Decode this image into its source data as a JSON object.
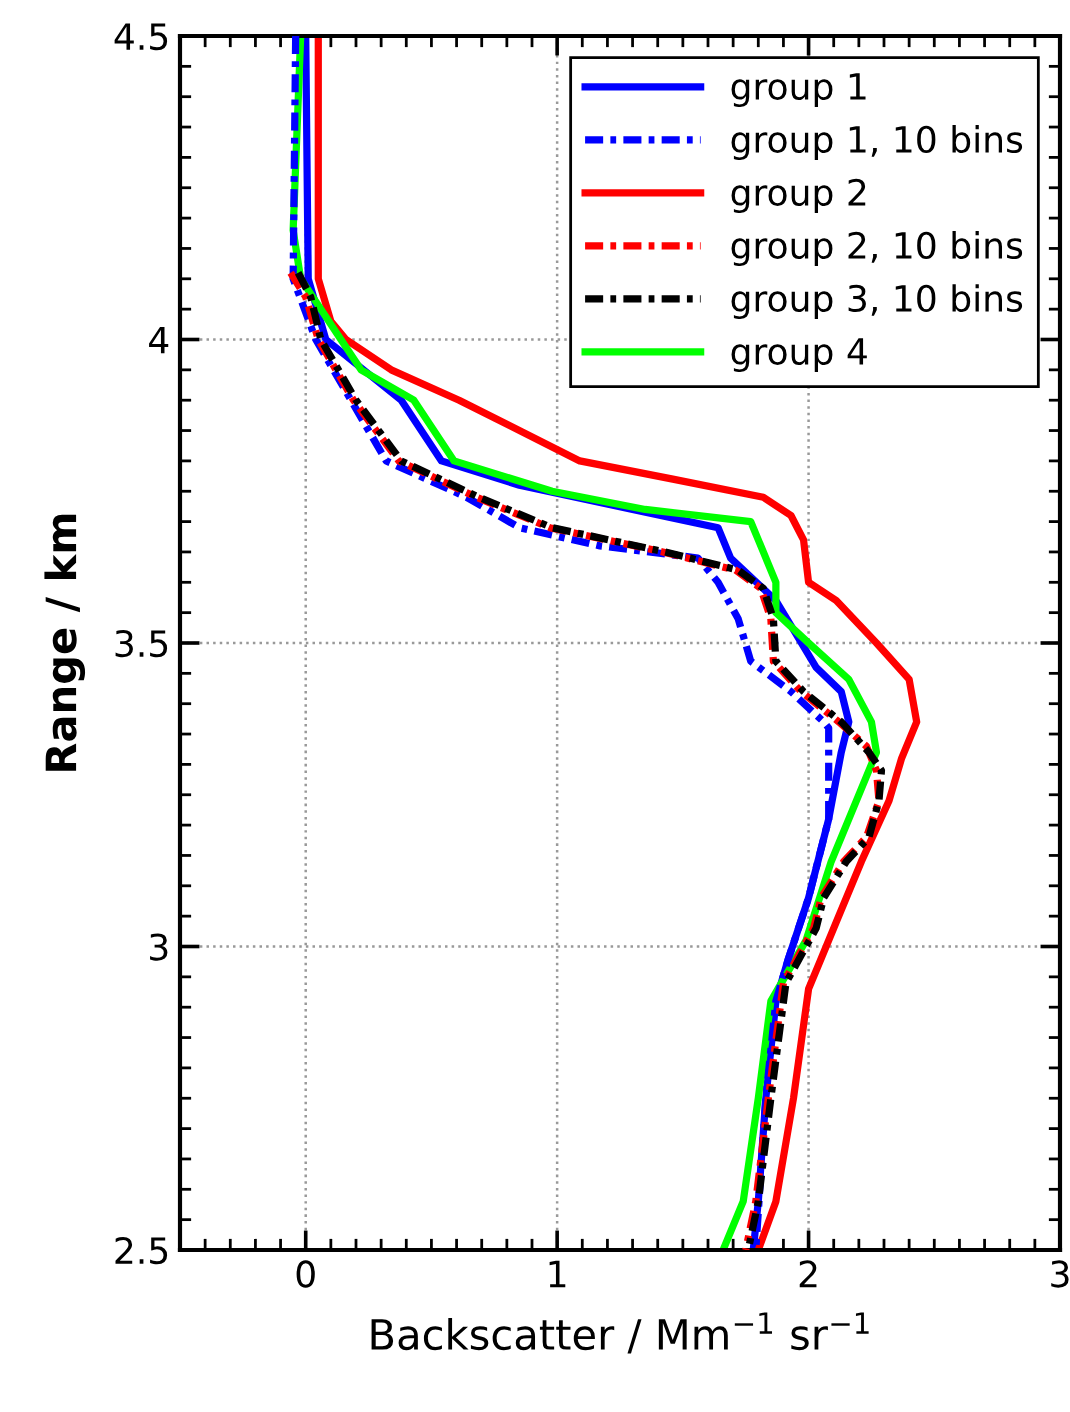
{
  "chart_data": {
    "type": "line",
    "xlabel": "Backscatter / Mm$^{−1}$ sr$^{−1}$",
    "ylabel": "Range / km",
    "xlim": [
      -0.5,
      3
    ],
    "ylim": [
      2.5,
      4.5
    ],
    "xticks": [
      0,
      1,
      2,
      3
    ],
    "yticks": [
      2.5,
      3,
      3.5,
      4,
      4.5
    ],
    "grid": true,
    "legend": "top right",
    "marker": "none",
    "series": [
      {
        "name": "group 1",
        "color": "#0000ff",
        "line_style": "solid",
        "x": [
          0.0,
          0.01,
          0.08,
          0.38,
          0.54,
          0.85,
          1.3,
          1.64,
          1.69,
          1.87,
          2.03,
          2.13,
          2.16,
          2.13,
          2.08,
          2.0,
          1.92,
          1.87,
          1.83,
          1.8,
          1.78
        ],
        "values": [
          4.5,
          4.1,
          4.0,
          3.9,
          3.8,
          3.76,
          3.72,
          3.69,
          3.64,
          3.57,
          3.46,
          3.42,
          3.37,
          3.32,
          3.21,
          3.08,
          2.98,
          2.91,
          2.75,
          2.58,
          2.5
        ]
      },
      {
        "name": "group 1, 10 bins",
        "color": "#0000ff",
        "line_style": "dashdot",
        "x": [
          -0.04,
          -0.05,
          0.04,
          0.18,
          0.32,
          0.64,
          0.85,
          1.17,
          1.56,
          1.64,
          1.72,
          1.77,
          1.93,
          2.06,
          2.08,
          2.08,
          2.0,
          1.92,
          1.87,
          1.83,
          1.79
        ],
        "values": [
          4.5,
          4.1,
          4.0,
          3.9,
          3.8,
          3.74,
          3.69,
          3.66,
          3.64,
          3.6,
          3.54,
          3.47,
          3.42,
          3.37,
          3.36,
          3.21,
          3.08,
          2.98,
          2.91,
          2.75,
          2.5
        ]
      },
      {
        "name": "group 2",
        "color": "#ff0000",
        "line_style": "solid",
        "x": [
          0.05,
          0.05,
          0.1,
          0.16,
          0.34,
          0.61,
          1.09,
          1.46,
          1.82,
          1.93,
          1.98,
          2.0,
          2.11,
          2.27,
          2.4,
          2.43,
          2.37,
          2.32,
          2.21,
          2.11,
          2.05,
          2.0,
          1.94,
          1.87,
          1.8
        ],
        "values": [
          4.5,
          4.1,
          4.03,
          4.0,
          3.95,
          3.9,
          3.8,
          3.77,
          3.74,
          3.71,
          3.67,
          3.6,
          3.57,
          3.5,
          3.44,
          3.37,
          3.31,
          3.24,
          3.14,
          3.04,
          2.98,
          2.93,
          2.75,
          2.58,
          2.5
        ]
      },
      {
        "name": "group 2, 10 bins",
        "color": "#ff0000",
        "line_style": "dashdot",
        "x": [
          -0.06,
          0.0,
          0.05,
          0.19,
          0.37,
          0.68,
          0.97,
          1.42,
          1.71,
          1.81,
          1.85,
          1.86,
          1.97,
          2.12,
          2.23,
          2.27,
          2.28,
          2.23,
          2.14,
          2.05,
          2.02,
          1.9,
          1.84,
          1.79,
          1.75
        ],
        "values": [
          4.11,
          4.07,
          4.0,
          3.9,
          3.8,
          3.74,
          3.69,
          3.65,
          3.62,
          3.59,
          3.54,
          3.47,
          3.42,
          3.37,
          3.33,
          3.29,
          3.24,
          3.18,
          3.14,
          3.08,
          3.03,
          2.94,
          2.75,
          2.58,
          2.5
        ]
      },
      {
        "name": "group 3, 10 bins",
        "color": "#000000",
        "line_style": "dashdot",
        "x": [
          -0.03,
          0.02,
          0.06,
          0.2,
          0.38,
          0.69,
          0.98,
          1.43,
          1.72,
          1.82,
          1.86,
          1.87,
          1.98,
          2.13,
          2.24,
          2.29,
          2.28,
          2.24,
          2.15,
          2.06,
          2.03,
          1.91,
          1.85,
          1.8,
          1.76
        ],
        "values": [
          4.11,
          4.07,
          4.0,
          3.9,
          3.8,
          3.74,
          3.69,
          3.65,
          3.62,
          3.59,
          3.54,
          3.47,
          3.42,
          3.37,
          3.32,
          3.29,
          3.24,
          3.18,
          3.14,
          3.08,
          3.03,
          2.94,
          2.75,
          2.58,
          2.5
        ]
      },
      {
        "name": "group 4",
        "color": "#00ff00",
        "line_style": "solid",
        "x": [
          -0.02,
          -0.05,
          -0.02,
          0.14,
          0.22,
          0.43,
          0.59,
          0.98,
          1.35,
          1.77,
          1.82,
          1.87,
          1.87,
          2.0,
          2.16,
          2.25,
          2.27,
          2.19,
          2.09,
          1.99,
          1.85,
          1.8,
          1.74,
          1.66
        ],
        "values": [
          4.5,
          4.18,
          4.1,
          4.0,
          3.95,
          3.9,
          3.8,
          3.75,
          3.72,
          3.7,
          3.65,
          3.6,
          3.55,
          3.5,
          3.44,
          3.37,
          3.32,
          3.24,
          3.14,
          3.01,
          2.91,
          2.75,
          2.58,
          2.5
        ]
      }
    ]
  }
}
